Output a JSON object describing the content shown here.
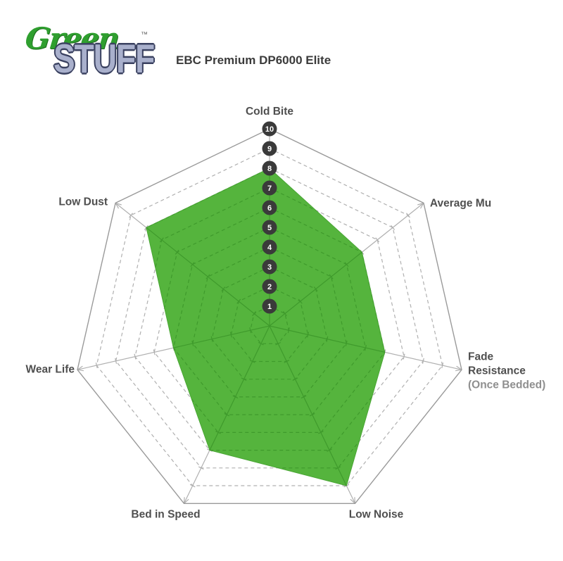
{
  "logo": {
    "word1": "Green",
    "word2": "STUFF",
    "tm": "™"
  },
  "title": "EBC Premium DP6000 Elite",
  "chart_data": {
    "type": "radar",
    "title": "EBC Premium DP6000 Elite",
    "scale": {
      "min": 1,
      "max": 10,
      "ticks": [
        1,
        2,
        3,
        4,
        5,
        6,
        7,
        8,
        9,
        10
      ]
    },
    "axes": [
      {
        "label": "Cold Bite",
        "value": 8
      },
      {
        "label": "Average Mu",
        "value": 6
      },
      {
        "label": "Fade Resistance",
        "label_lines": [
          "Fade",
          "Resistance"
        ],
        "sublabel": "(Once Bedded)",
        "value": 6
      },
      {
        "label": "Low Noise",
        "value": 9
      },
      {
        "label": "Bed in Speed",
        "value": 7
      },
      {
        "label": "Wear Life",
        "value": 5
      },
      {
        "label": "Low Dust",
        "value": 8
      }
    ],
    "legend": "none",
    "grid": "dashed-rings",
    "colors": {
      "fill": "#55b43d",
      "fill_edge": "#49a634",
      "grid_outside": "#b0b0b0",
      "grid_inside": "#3f9a2c",
      "outline": "#9a9a9a",
      "marker_bg": "#3a3a3a",
      "marker_text": "#ffffff",
      "label": "#4f4f4f",
      "sublabel": "#8f8f8f"
    }
  }
}
